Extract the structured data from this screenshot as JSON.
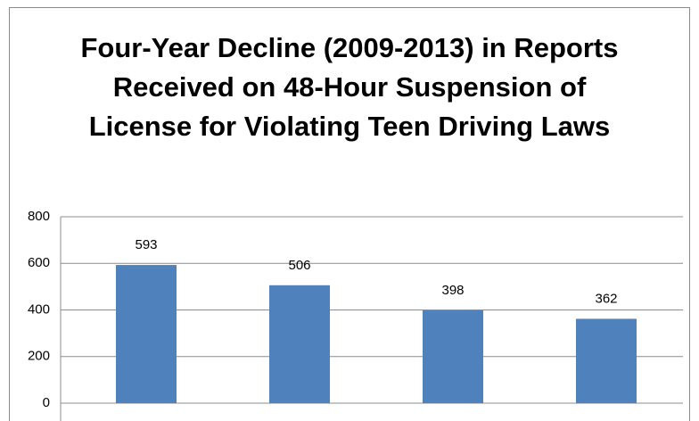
{
  "chart_data": {
    "type": "bar",
    "title": "Four-Year Decline (2009-2013) in Reports Received on 48-Hour Suspension of License for Violating Teen Driving Laws",
    "categories": [
      null,
      null,
      null,
      null
    ],
    "values": [
      593,
      506,
      398,
      362
    ],
    "color": "#4f81bd",
    "ylim": [
      0,
      800
    ],
    "yticks": [
      0,
      200,
      400,
      600,
      800
    ],
    "grid": true
  }
}
